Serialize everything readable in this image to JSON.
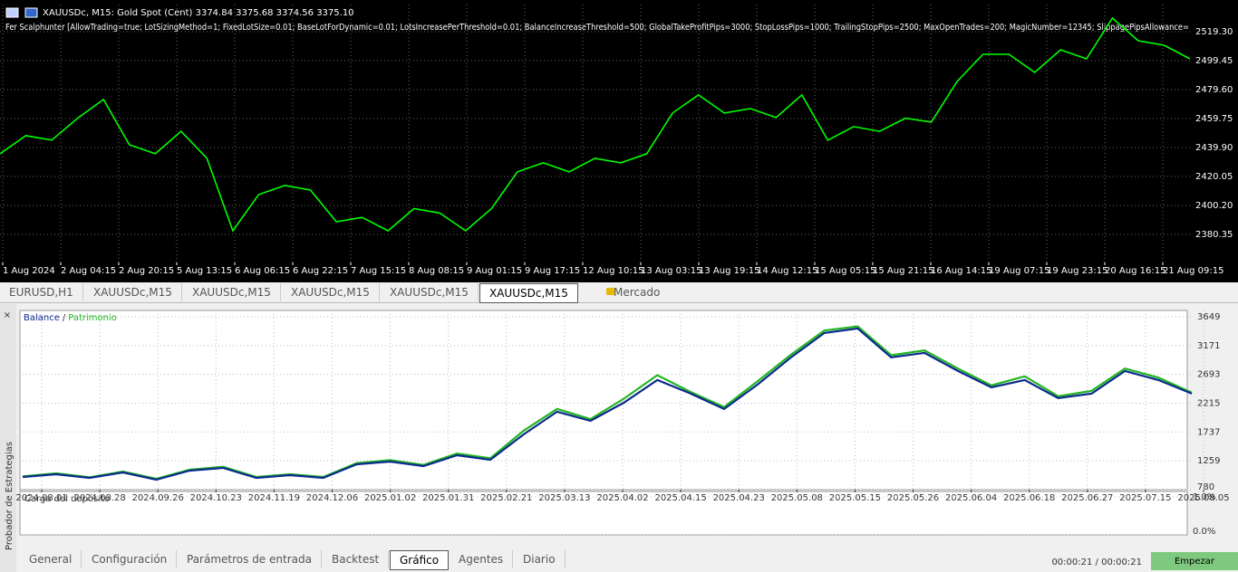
{
  "price_chart": {
    "type": "line",
    "header": "XAUUSDc, M15:  Gold Spot (Cent)  3374.84 3375.68 3374.56 3375.10",
    "expert": "Fer Scalphunter [AllowTrading=true; LotSizingMethod=1; FixedLotSize=0.01; BaseLotForDynamic=0.01; LotsIncreasePerThreshold=0.01; BalanceIncreaseThreshold=500; GlobalTakeProfitPips=3000; StopLossPips=1000; TrailingStopPips=2500; MaxOpenTrades=200; MagicNumber=12345; SlippagePipsAllowance=",
    "color": "#00ff00",
    "values": [
      2435.6,
      2448,
      2445,
      2460,
      2472.8,
      2441.8,
      2435.6,
      2451,
      2432.5,
      2382.8,
      2407.6,
      2413.8,
      2410.7,
      2389,
      2392,
      2382.8,
      2398,
      2395,
      2382.8,
      2398,
      2423.2,
      2429.4,
      2423.2,
      2432.5,
      2429.4,
      2435.6,
      2463.5,
      2475.9,
      2463.5,
      2466.6,
      2460.4,
      2475.9,
      2444.9,
      2454.2,
      2451,
      2460,
      2457.3,
      2485.2,
      2503.8,
      2503.8,
      2491.4,
      2506.9,
      2500.7,
      2528.6,
      2513.1,
      2510,
      2500.7
    ],
    "ylim": [
      2361.1,
      2537.9
    ],
    "yticks": [
      2380.35,
      {
        "value": 2400.2,
        "label": "2400.20"
      },
      2420.05,
      {
        "value": 2439.9,
        "label": "2439.90"
      },
      2459.75,
      {
        "value": 2479.6,
        "label": "2479.60"
      },
      2499.45,
      {
        "value": 2519.3,
        "label": "2519.30"
      }
    ],
    "x_labels": [
      "1 Aug 2024",
      "2 Aug 04:15",
      "2 Aug 20:15",
      "5 Aug 13:15",
      "6 Aug 06:15",
      "6 Aug 22:15",
      "7 Aug 15:15",
      "8 Aug 08:15",
      "9 Aug 01:15",
      "9 Aug 17:15",
      "12 Aug 10:15",
      "13 Aug 03:15",
      "13 Aug 19:15",
      "14 Aug 12:15",
      "15 Aug 05:15",
      "15 Aug 21:15",
      "16 Aug 14:15",
      "19 Aug 07:15",
      "19 Aug 23:15",
      "20 Aug 16:15",
      "21 Aug 09:15"
    ],
    "grid": true
  },
  "chart_tabs": [
    "EURUSD,H1",
    "XAUUSDc,M15",
    "XAUUSDc,M15",
    "XAUUSDc,M15",
    "XAUUSDc,M15",
    "XAUUSDc,M15"
  ],
  "active_chart_tab": 5,
  "market_tab": "Mercado",
  "close": "×",
  "side_title": "Probador de Estrategias",
  "balance_chart": {
    "type": "line",
    "legend_separator": "/",
    "series": [
      {
        "name": "Balance",
        "color": "#0b2a8c",
        "values": [
          990,
          1035,
          975,
          1066,
          945,
          1096,
          1141,
          975,
          1020,
          975,
          1200,
          1246,
          1171,
          1351,
          1276,
          1697,
          2073,
          1922,
          2223,
          2599,
          2373,
          2118,
          2524,
          2974,
          3380,
          3455,
          2974,
          3049,
          2749,
          2478,
          2599,
          2298,
          2373,
          2749,
          2599,
          2373
        ]
      },
      {
        "name": "Patrimonio",
        "color": "#22b522",
        "values": [
          1000,
          1050,
          985,
          1080,
          960,
          1110,
          1160,
          990,
          1035,
          990,
          1220,
          1270,
          1190,
          1380,
          1300,
          1760,
          2120,
          1950,
          2290,
          2680,
          2400,
          2150,
          2580,
          3020,
          3420,
          3490,
          3010,
          3090,
          2790,
          2510,
          2660,
          2330,
          2420,
          2790,
          2640,
          2390
        ]
      }
    ],
    "ylim": [
      780,
      3754
    ],
    "yticks": [
      780,
      1259,
      1737,
      2215,
      2693,
      3171,
      3649
    ],
    "x_labels": [
      "2024.08.01",
      "2024.08.28",
      "2024.09.26",
      "2024.10.23",
      "2024.11.19",
      "2024.12.06",
      "2025.01.02",
      "2025.01.31",
      "2025.02.21",
      "2025.03.13",
      "2025.04.02",
      "2025.04.15",
      "2025.04.23",
      "2025.05.08",
      "2025.05.15",
      "2025.05.26",
      "2025.06.04",
      "2025.06.18",
      "2025.06.27",
      "2025.07.15",
      "2025.08.05"
    ],
    "grid": true
  },
  "deposit_chart": {
    "title": "Carga del depósito",
    "ylim": [
      0,
      1
    ],
    "yticks": [
      {
        "value": 0,
        "label": "0.0%"
      },
      {
        "value": 1,
        "label": "1.0%"
      }
    ]
  },
  "bottom_tabs": [
    "General",
    "Configuración",
    "Parámetros de entrada",
    "Backtest",
    "Gráfico",
    "Agentes",
    "Diario"
  ],
  "active_bottom_tab": 4,
  "status": "00:00:21 / 00:00:21",
  "start_button": "Empezar"
}
